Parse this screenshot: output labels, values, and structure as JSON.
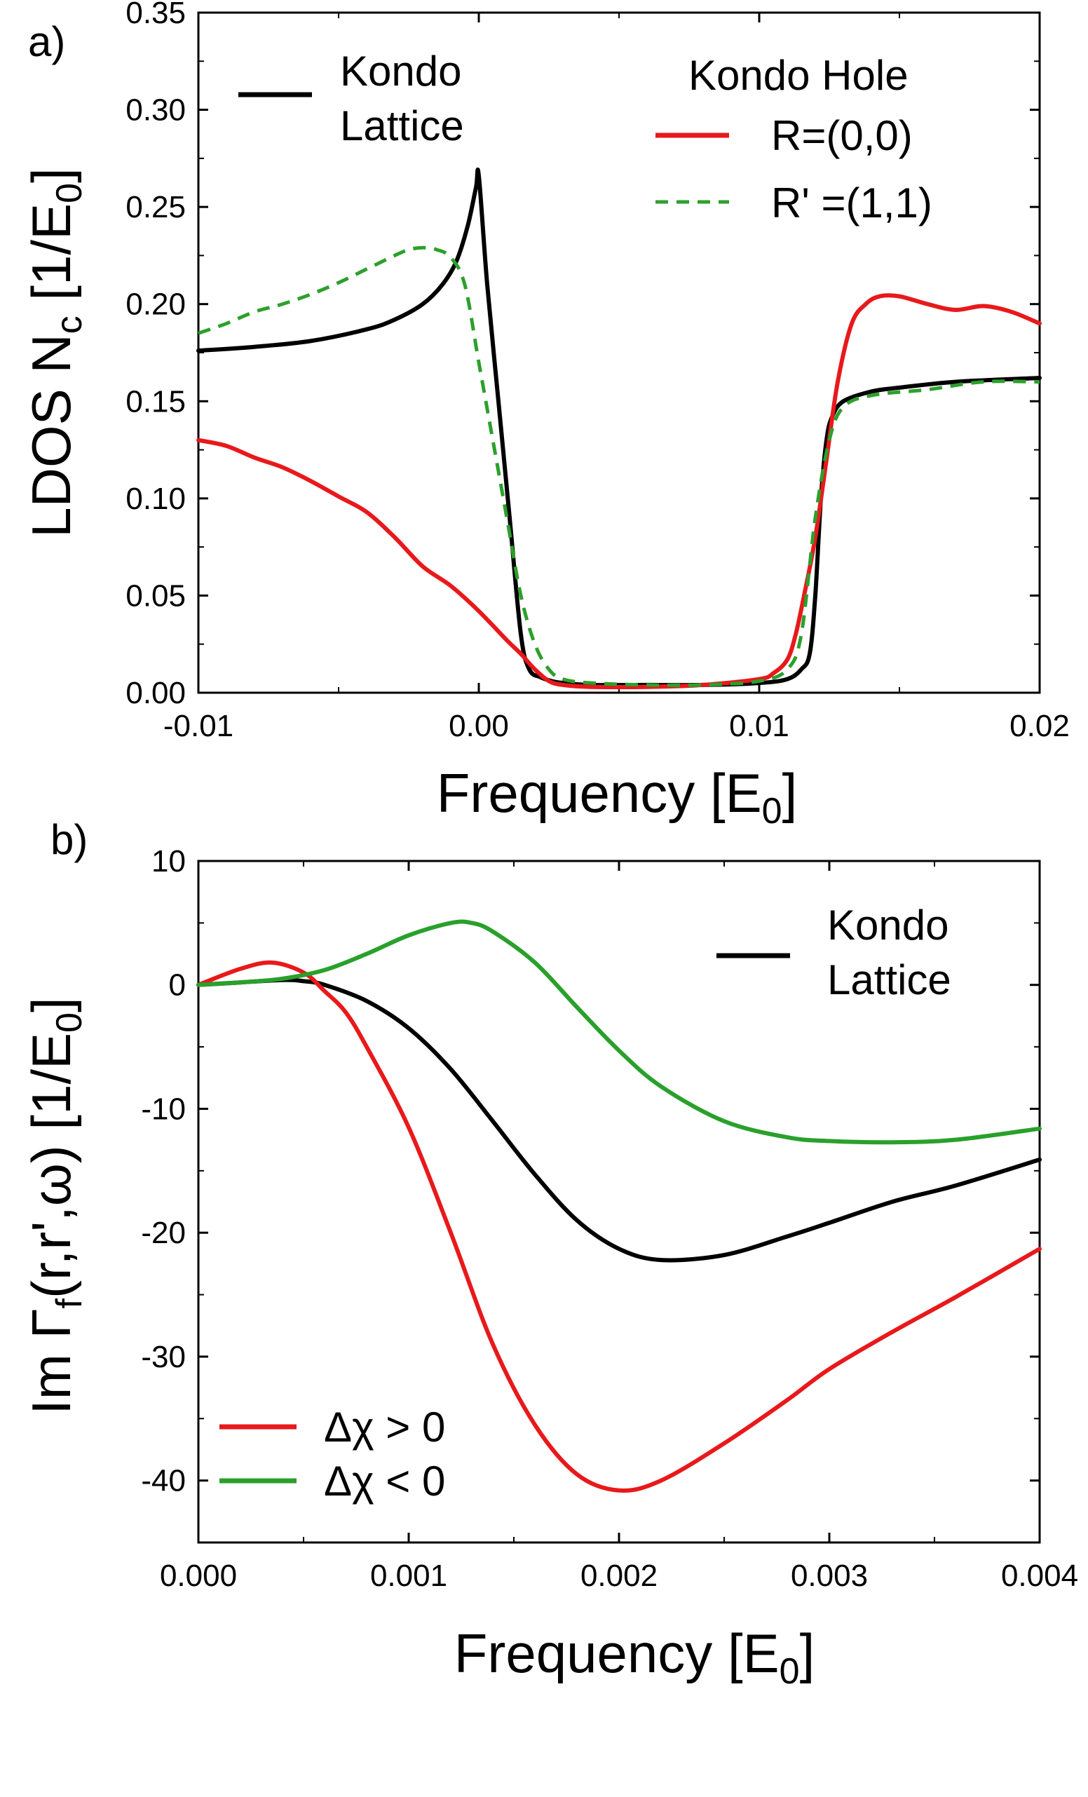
{
  "chart_data": [
    {
      "panel": "a)",
      "type": "line",
      "xlabel": "Frequency [E",
      "xlabel_sub": "0",
      "xlabel_close": "]",
      "ylabel": "LDOS N",
      "ylabel_sub1": "c",
      "ylabel_mid": " [1/E",
      "ylabel_sub2": "0",
      "ylabel_close": "]",
      "xlim": [
        -0.01,
        0.02
      ],
      "ylim": [
        0.0,
        0.35
      ],
      "xticks": [
        -0.01,
        0.0,
        0.01,
        0.02
      ],
      "xtick_labels": [
        "-0.01",
        "0.00",
        "0.01",
        "0.02"
      ],
      "yticks": [
        0.0,
        0.05,
        0.1,
        0.15,
        0.2,
        0.25,
        0.3,
        0.35
      ],
      "ytick_labels": [
        "0.00",
        "0.05",
        "0.10",
        "0.15",
        "0.20",
        "0.25",
        "0.30",
        "0.35"
      ],
      "legend_header": "Kondo Hole",
      "series": [
        {
          "name": "Kondo Lattice",
          "name_line1": "Kondo",
          "name_line2": "Lattice",
          "color": "#000000",
          "dash": "",
          "x": [
            -0.01,
            -0.008,
            -0.006,
            -0.004,
            -0.003,
            -0.002,
            -0.0013,
            -0.0008,
            -0.0004,
            -0.0001,
            0.0,
            0.0003,
            0.0007,
            0.0011,
            0.0015,
            0.0018,
            0.0022,
            0.0026,
            0.003,
            0.004,
            0.006,
            0.008,
            0.01,
            0.011,
            0.0115,
            0.0118,
            0.012,
            0.0122,
            0.0124,
            0.0126,
            0.013,
            0.014,
            0.015,
            0.017,
            0.02
          ],
          "y": [
            0.176,
            0.178,
            0.181,
            0.187,
            0.192,
            0.2,
            0.21,
            0.222,
            0.24,
            0.26,
            0.266,
            0.21,
            0.15,
            0.09,
            0.03,
            0.012,
            0.008,
            0.006,
            0.005,
            0.004,
            0.004,
            0.004,
            0.005,
            0.007,
            0.012,
            0.02,
            0.05,
            0.1,
            0.13,
            0.142,
            0.15,
            0.155,
            0.157,
            0.16,
            0.162
          ]
        },
        {
          "name": "R=(0,0)",
          "color": "#e8191b",
          "dash": "",
          "x": [
            -0.01,
            -0.009,
            -0.008,
            -0.007,
            -0.006,
            -0.005,
            -0.004,
            -0.003,
            -0.002,
            -0.001,
            0.0,
            0.001,
            0.0015,
            0.002,
            0.0025,
            0.003,
            0.004,
            0.006,
            0.008,
            0.01,
            0.0105,
            0.011,
            0.0113,
            0.0116,
            0.012,
            0.0124,
            0.0128,
            0.0133,
            0.0138,
            0.0143,
            0.015,
            0.016,
            0.017,
            0.018,
            0.019,
            0.02
          ],
          "y": [
            0.13,
            0.127,
            0.121,
            0.116,
            0.109,
            0.101,
            0.093,
            0.08,
            0.065,
            0.055,
            0.042,
            0.027,
            0.02,
            0.012,
            0.006,
            0.004,
            0.003,
            0.003,
            0.004,
            0.007,
            0.01,
            0.017,
            0.03,
            0.05,
            0.08,
            0.12,
            0.16,
            0.19,
            0.2,
            0.204,
            0.204,
            0.2,
            0.197,
            0.199,
            0.196,
            0.19
          ]
        },
        {
          "name": "R' =(1,1)",
          "color": "#2ca02c",
          "dash": "18,12",
          "x": [
            -0.01,
            -0.009,
            -0.008,
            -0.007,
            -0.006,
            -0.005,
            -0.004,
            -0.003,
            -0.0025,
            -0.002,
            -0.0015,
            -0.001,
            -0.0005,
            0.0,
            0.0005,
            0.001,
            0.0015,
            0.002,
            0.0025,
            0.003,
            0.004,
            0.006,
            0.008,
            0.01,
            0.011,
            0.0115,
            0.012,
            0.0125,
            0.013,
            0.014,
            0.016,
            0.018,
            0.02
          ],
          "y": [
            0.185,
            0.19,
            0.196,
            0.2,
            0.205,
            0.211,
            0.218,
            0.225,
            0.228,
            0.229,
            0.228,
            0.224,
            0.21,
            0.17,
            0.13,
            0.09,
            0.05,
            0.025,
            0.012,
            0.007,
            0.005,
            0.004,
            0.004,
            0.006,
            0.012,
            0.03,
            0.09,
            0.13,
            0.147,
            0.153,
            0.156,
            0.16,
            0.16
          ]
        }
      ]
    },
    {
      "panel": "b)",
      "type": "line",
      "xlabel": "Frequency [E",
      "xlabel_sub": "0",
      "xlabel_close": "]",
      "ylabel": "Im Γ",
      "ylabel_sub": "f",
      "ylabel_rest": "(r,r',ω)   [1/E",
      "ylabel_sub2": "0",
      "ylabel_close": "]",
      "xlim": [
        0.0,
        0.004
      ],
      "ylim": [
        -45,
        10
      ],
      "xticks": [
        0.0,
        0.001,
        0.002,
        0.003,
        0.004
      ],
      "xtick_labels": [
        "0.000",
        "0.001",
        "0.002",
        "0.003",
        "0.004"
      ],
      "yticks": [
        10,
        0,
        -10,
        -20,
        -30,
        -40
      ],
      "ytick_labels": [
        "10",
        "0",
        "-10",
        "-20",
        "-30",
        "-40"
      ],
      "series": [
        {
          "name": "Kondo Lattice",
          "name_line1": "Kondo",
          "name_line2": "Lattice",
          "color": "#000000",
          "x": [
            0.0,
            0.0002,
            0.0004,
            0.0005,
            0.0006,
            0.0008,
            0.001,
            0.0012,
            0.0014,
            0.0016,
            0.0018,
            0.002,
            0.0022,
            0.0025,
            0.0028,
            0.003,
            0.0033,
            0.0036,
            0.004
          ],
          "y": [
            0.0,
            0.2,
            0.4,
            0.3,
            0.0,
            -1.3,
            -3.5,
            -6.8,
            -11.0,
            -15.3,
            -19.0,
            -21.3,
            -22.2,
            -21.8,
            -20.3,
            -19.2,
            -17.5,
            -16.2,
            -14.1
          ]
        },
        {
          "name": "Δχ > 0",
          "color": "#e8191b",
          "x": [
            0.0,
            0.0002,
            0.00035,
            0.0005,
            0.0006,
            0.0007,
            0.0008,
            0.001,
            0.0012,
            0.0014,
            0.0016,
            0.0018,
            0.002,
            0.0022,
            0.0025,
            0.0028,
            0.003,
            0.0033,
            0.0036,
            0.004
          ],
          "y": [
            0.0,
            1.3,
            1.8,
            1.0,
            -0.5,
            -2.2,
            -5.0,
            -11.5,
            -20.0,
            -29.0,
            -35.5,
            -39.5,
            -40.8,
            -40.0,
            -37.0,
            -33.5,
            -31.0,
            -28.0,
            -25.2,
            -21.3
          ]
        },
        {
          "name": "Δχ < 0",
          "color": "#2aa02c",
          "x": [
            0.0,
            0.0002,
            0.0004,
            0.0006,
            0.0008,
            0.001,
            0.0012,
            0.0013,
            0.0014,
            0.0016,
            0.0018,
            0.002,
            0.0022,
            0.0025,
            0.0028,
            0.003,
            0.0033,
            0.0036,
            0.004
          ],
          "y": [
            0.0,
            0.2,
            0.5,
            1.2,
            2.5,
            4.0,
            5.0,
            5.0,
            4.3,
            1.8,
            -1.8,
            -5.3,
            -8.2,
            -11.0,
            -12.3,
            -12.6,
            -12.7,
            -12.5,
            -11.6
          ]
        }
      ]
    }
  ]
}
